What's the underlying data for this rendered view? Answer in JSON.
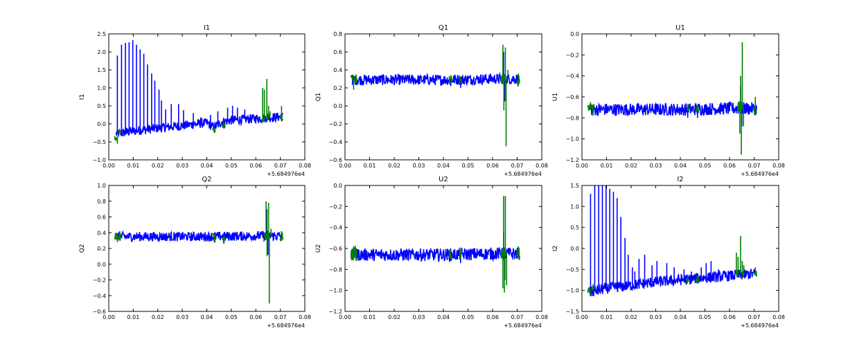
{
  "chart_data": [
    {
      "type": "line",
      "title": "I1",
      "ylabel": "I1",
      "xlabel": "",
      "x_offset_label": "+5.684976e4",
      "xlim": [
        0.0,
        0.08
      ],
      "ylim": [
        -1.0,
        2.5
      ],
      "xticks": [
        "0.00",
        "0.01",
        "0.02",
        "0.03",
        "0.04",
        "0.05",
        "0.06",
        "0.07",
        "0.08"
      ],
      "yticks": [
        "−1.0",
        "−0.5",
        "0.0",
        "0.5",
        "1.0",
        "1.5",
        "2.0",
        "2.5"
      ],
      "ytick_values": [
        -1.0,
        -0.5,
        0.0,
        0.5,
        1.0,
        1.5,
        2.0,
        2.5
      ],
      "grid": false,
      "series": [
        {
          "color": "#0000ff",
          "x": [
            0.003,
            0.01,
            0.02,
            0.03,
            0.04,
            0.043,
            0.046,
            0.05,
            0.06,
            0.071
          ],
          "y": [
            -0.28,
            -0.2,
            -0.12,
            -0.05,
            0.03,
            -0.1,
            0.05,
            0.1,
            0.15,
            0.2
          ],
          "band": 0.13,
          "spikes": [
            [
              0.0035,
              1.9
            ],
            [
              0.0052,
              2.2
            ],
            [
              0.0068,
              2.25
            ],
            [
              0.0083,
              2.27
            ],
            [
              0.0098,
              2.33
            ],
            [
              0.0113,
              2.2
            ],
            [
              0.0128,
              2.07
            ],
            [
              0.0143,
              1.95
            ],
            [
              0.0158,
              1.65
            ],
            [
              0.0175,
              1.4
            ],
            [
              0.0188,
              1.2
            ],
            [
              0.0205,
              0.95
            ],
            [
              0.0215,
              0.65
            ],
            [
              0.0232,
              0.4
            ],
            [
              0.0255,
              0.55
            ],
            [
              0.0285,
              0.55
            ],
            [
              0.0305,
              0.38
            ],
            [
              0.0345,
              0.3
            ],
            [
              0.0375,
              0.18
            ],
            [
              0.0415,
              0.25
            ],
            [
              0.0445,
              0.35
            ],
            [
              0.0485,
              0.45
            ],
            [
              0.0505,
              0.5
            ],
            [
              0.0525,
              0.45
            ],
            [
              0.0555,
              0.4
            ]
          ]
        },
        {
          "color": "#008000",
          "x": [
            0.003,
            0.0045,
            0.043,
            0.047,
            0.063,
            0.0655,
            0.0705
          ],
          "y": [
            -0.4,
            -0.25,
            -0.18,
            -0.05,
            0.1,
            0.2,
            0.15
          ],
          "band": 0.08,
          "spikes": [
            [
              0.0035,
              -0.55
            ],
            [
              0.0045,
              -0.15
            ],
            [
              0.0432,
              -0.25
            ],
            [
              0.0468,
              0.05
            ],
            [
              0.0628,
              1.0
            ],
            [
              0.0635,
              0.95
            ],
            [
              0.0645,
              1.25
            ],
            [
              0.0652,
              0.5
            ],
            [
              0.0658,
              0.35
            ],
            [
              0.0705,
              0.5
            ]
          ]
        }
      ]
    },
    {
      "type": "line",
      "title": "Q1",
      "ylabel": "Q1",
      "xlabel": "",
      "x_offset_label": "+5.684976e4",
      "xlim": [
        0.0,
        0.08
      ],
      "ylim": [
        -0.6,
        0.8
      ],
      "xticks": [
        "0.00",
        "0.01",
        "0.02",
        "0.03",
        "0.04",
        "0.05",
        "0.06",
        "0.07",
        "0.08"
      ],
      "yticks": [
        "−0.6",
        "−0.4",
        "−0.2",
        "0.0",
        "0.2",
        "0.4",
        "0.6",
        "0.8"
      ],
      "ytick_values": [
        -0.6,
        -0.4,
        -0.2,
        0.0,
        0.2,
        0.4,
        0.6,
        0.8
      ],
      "grid": false,
      "series": [
        {
          "color": "#0000ff",
          "x": [
            0.003,
            0.02,
            0.04,
            0.06,
            0.071
          ],
          "y": [
            0.29,
            0.29,
            0.29,
            0.3,
            0.3
          ],
          "band": 0.06,
          "spikes": [
            [
              0.043,
              0.22
            ],
            [
              0.047,
              0.2
            ],
            [
              0.0645,
              0.6
            ],
            [
              0.065,
              0.05
            ]
          ]
        },
        {
          "color": "#008000",
          "x": [
            0.003,
            0.0045,
            0.043,
            0.047,
            0.064,
            0.0648,
            0.0705
          ],
          "y": [
            0.28,
            0.3,
            0.28,
            0.27,
            0.3,
            0.3,
            0.28
          ],
          "band": 0.06,
          "spikes": [
            [
              0.0035,
              0.18
            ],
            [
              0.0045,
              0.35
            ],
            [
              0.0642,
              0.68
            ],
            [
              0.0646,
              -0.05
            ],
            [
              0.0652,
              0.65
            ],
            [
              0.0655,
              -0.45
            ],
            [
              0.0662,
              0.4
            ],
            [
              0.0705,
              0.36
            ]
          ]
        }
      ]
    },
    {
      "type": "line",
      "title": "U1",
      "ylabel": "U1",
      "xlabel": "",
      "x_offset_label": "+5.684976e4",
      "xlim": [
        0.0,
        0.08
      ],
      "ylim": [
        -1.2,
        0.0
      ],
      "xticks": [
        "0.00",
        "0.01",
        "0.02",
        "0.03",
        "0.04",
        "0.05",
        "0.06",
        "0.07",
        "0.08"
      ],
      "yticks": [
        "−1.2",
        "−1.0",
        "−0.8",
        "−0.6",
        "−0.4",
        "−0.2",
        "0.0"
      ],
      "ytick_values": [
        -1.2,
        -1.0,
        -0.8,
        -0.6,
        -0.4,
        -0.2,
        0.0
      ],
      "grid": false,
      "series": [
        {
          "color": "#0000ff",
          "x": [
            0.003,
            0.02,
            0.04,
            0.06,
            0.071
          ],
          "y": [
            -0.72,
            -0.72,
            -0.72,
            -0.71,
            -0.71
          ],
          "band": 0.06,
          "spikes": [
            [
              0.043,
              -0.8
            ],
            [
              0.047,
              -0.8
            ],
            [
              0.0645,
              -0.5
            ],
            [
              0.065,
              -0.88
            ]
          ]
        },
        {
          "color": "#008000",
          "x": [
            0.003,
            0.0045,
            0.043,
            0.047,
            0.064,
            0.0648,
            0.0705
          ],
          "y": [
            -0.72,
            -0.7,
            -0.72,
            -0.72,
            -0.7,
            -0.7,
            -0.72
          ],
          "band": 0.06,
          "spikes": [
            [
              0.0035,
              -0.65
            ],
            [
              0.0045,
              -0.78
            ],
            [
              0.0642,
              -0.95
            ],
            [
              0.0645,
              -0.4
            ],
            [
              0.0648,
              -1.15
            ],
            [
              0.0652,
              -0.08
            ],
            [
              0.0657,
              -0.88
            ],
            [
              0.0705,
              -0.6
            ]
          ]
        }
      ]
    },
    {
      "type": "line",
      "title": "Q2",
      "ylabel": "Q2",
      "xlabel": "",
      "x_offset_label": "+5.684976e4",
      "xlim": [
        0.0,
        0.08
      ],
      "ylim": [
        -0.6,
        1.0
      ],
      "xticks": [
        "0.00",
        "0.01",
        "0.02",
        "0.03",
        "0.04",
        "0.05",
        "0.06",
        "0.07",
        "0.08"
      ],
      "yticks": [
        "−0.6",
        "−0.4",
        "−0.2",
        "0.0",
        "0.2",
        "0.4",
        "0.6",
        "0.8",
        "1.0"
      ],
      "ytick_values": [
        -0.6,
        -0.4,
        -0.2,
        0.0,
        0.2,
        0.4,
        0.6,
        0.8,
        1.0
      ],
      "grid": false,
      "series": [
        {
          "color": "#0000ff",
          "x": [
            0.003,
            0.02,
            0.04,
            0.06,
            0.071
          ],
          "y": [
            0.35,
            0.35,
            0.35,
            0.36,
            0.36
          ],
          "band": 0.06,
          "spikes": [
            [
              0.043,
              0.28
            ],
            [
              0.047,
              0.26
            ],
            [
              0.0645,
              0.7
            ],
            [
              0.065,
              0.12
            ]
          ]
        },
        {
          "color": "#008000",
          "x": [
            0.003,
            0.0045,
            0.043,
            0.047,
            0.064,
            0.0648,
            0.0705
          ],
          "y": [
            0.34,
            0.36,
            0.34,
            0.33,
            0.36,
            0.36,
            0.34
          ],
          "band": 0.06,
          "spikes": [
            [
              0.0035,
              0.28
            ],
            [
              0.0045,
              0.42
            ],
            [
              0.0642,
              0.8
            ],
            [
              0.0646,
              0.1
            ],
            [
              0.0652,
              0.78
            ],
            [
              0.0655,
              -0.5
            ],
            [
              0.0662,
              0.45
            ],
            [
              0.0705,
              0.42
            ]
          ]
        }
      ]
    },
    {
      "type": "line",
      "title": "U2",
      "ylabel": "U2",
      "xlabel": "",
      "x_offset_label": "+5.684976e4",
      "xlim": [
        0.0,
        0.08
      ],
      "ylim": [
        -1.2,
        0.0
      ],
      "xticks": [
        "0.00",
        "0.01",
        "0.02",
        "0.03",
        "0.04",
        "0.05",
        "0.06",
        "0.07",
        "0.08"
      ],
      "yticks": [
        "−1.2",
        "−1.0",
        "−0.8",
        "−0.6",
        "−0.4",
        "−0.2",
        "0.0"
      ],
      "ytick_values": [
        -1.2,
        -1.0,
        -0.8,
        -0.6,
        -0.4,
        -0.2,
        0.0
      ],
      "grid": false,
      "series": [
        {
          "color": "#0000ff",
          "x": [
            0.003,
            0.02,
            0.04,
            0.06,
            0.071
          ],
          "y": [
            -0.66,
            -0.66,
            -0.66,
            -0.65,
            -0.65
          ],
          "band": 0.06,
          "spikes": [
            [
              0.043,
              -0.72
            ],
            [
              0.047,
              -0.74
            ],
            [
              0.0645,
              -0.45
            ],
            [
              0.065,
              -0.9
            ]
          ]
        },
        {
          "color": "#008000",
          "x": [
            0.003,
            0.0045,
            0.043,
            0.047,
            0.064,
            0.0648,
            0.0705
          ],
          "y": [
            -0.66,
            -0.64,
            -0.66,
            -0.66,
            -0.64,
            -0.64,
            -0.66
          ],
          "band": 0.06,
          "spikes": [
            [
              0.0035,
              -0.58
            ],
            [
              0.0045,
              -0.72
            ],
            [
              0.0642,
              -0.98
            ],
            [
              0.0645,
              -0.1
            ],
            [
              0.0648,
              -1.02
            ],
            [
              0.0652,
              -0.1
            ],
            [
              0.0657,
              -0.95
            ],
            [
              0.0705,
              -0.58
            ]
          ]
        }
      ]
    },
    {
      "type": "line",
      "title": "I2",
      "ylabel": "I2",
      "xlabel": "",
      "x_offset_label": "+5.684976e4",
      "xlim": [
        0.0,
        0.08
      ],
      "ylim": [
        -1.5,
        1.5
      ],
      "xticks": [
        "0.00",
        "0.01",
        "0.02",
        "0.03",
        "0.04",
        "0.05",
        "0.06",
        "0.07",
        "0.08"
      ],
      "yticks": [
        "−1.5",
        "−1.0",
        "−0.5",
        "0.0",
        "0.5",
        "1.0",
        "1.5"
      ],
      "ytick_values": [
        -1.5,
        -1.0,
        -0.5,
        0.0,
        0.5,
        1.0,
        1.5
      ],
      "grid": false,
      "series": [
        {
          "color": "#0000ff",
          "x": [
            0.003,
            0.01,
            0.02,
            0.03,
            0.04,
            0.05,
            0.06,
            0.071
          ],
          "y": [
            -1.05,
            -0.95,
            -0.88,
            -0.8,
            -0.75,
            -0.7,
            -0.65,
            -0.6
          ],
          "band": 0.13,
          "spikes": [
            [
              0.0035,
              1.3
            ],
            [
              0.0052,
              1.5
            ],
            [
              0.0068,
              1.5
            ],
            [
              0.0083,
              1.5
            ],
            [
              0.0098,
              1.5
            ],
            [
              0.0113,
              1.42
            ],
            [
              0.0128,
              1.35
            ],
            [
              0.0143,
              1.2
            ],
            [
              0.0158,
              0.75
            ],
            [
              0.0175,
              0.25
            ],
            [
              0.0188,
              -0.15
            ],
            [
              0.0205,
              -0.45
            ],
            [
              0.0215,
              -0.55
            ],
            [
              0.0232,
              -0.25
            ],
            [
              0.0255,
              -0.15
            ],
            [
              0.0285,
              -0.4
            ],
            [
              0.0305,
              -0.3
            ],
            [
              0.0345,
              -0.35
            ],
            [
              0.0375,
              -0.45
            ],
            [
              0.0415,
              -0.5
            ],
            [
              0.0445,
              -0.55
            ],
            [
              0.0485,
              -0.45
            ],
            [
              0.0505,
              -0.35
            ],
            [
              0.0525,
              -0.3
            ],
            [
              0.0555,
              -0.5
            ]
          ]
        },
        {
          "color": "#008000",
          "x": [
            0.003,
            0.0045,
            0.043,
            0.047,
            0.063,
            0.0655,
            0.0705
          ],
          "y": [
            -1.0,
            -0.95,
            -0.75,
            -0.72,
            -0.6,
            -0.58,
            -0.58
          ],
          "band": 0.08,
          "spikes": [
            [
              0.0035,
              -1.1
            ],
            [
              0.0045,
              -0.85
            ],
            [
              0.0432,
              -0.8
            ],
            [
              0.0468,
              -0.65
            ],
            [
              0.0628,
              -0.1
            ],
            [
              0.0635,
              -0.2
            ],
            [
              0.0645,
              0.3
            ],
            [
              0.0652,
              -0.3
            ],
            [
              0.0658,
              -0.4
            ],
            [
              0.0705,
              -0.45
            ]
          ]
        }
      ]
    }
  ]
}
